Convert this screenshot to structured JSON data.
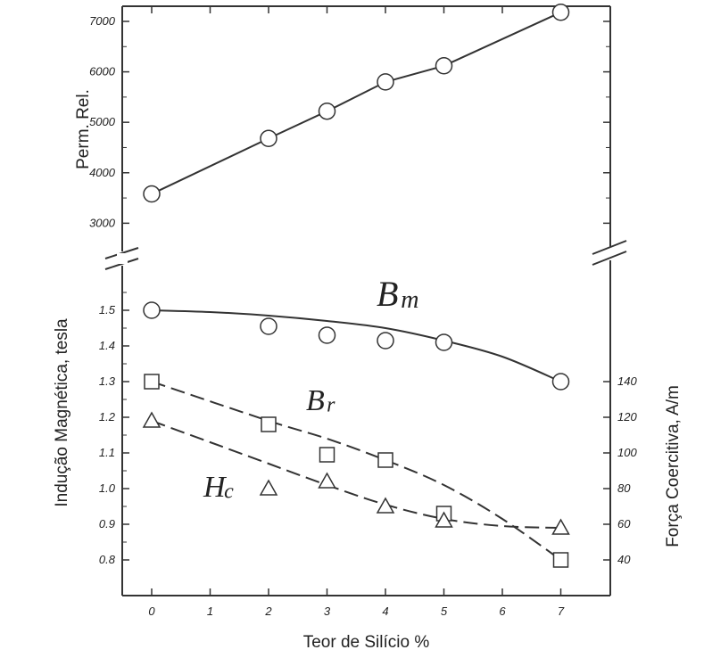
{
  "chart_data": [
    {
      "type": "line",
      "ylabel": "Perm. Rel.",
      "xlim": [
        -0.3,
        7.35
      ],
      "ylim": [
        2600,
        7300
      ],
      "yticks": [
        "3000",
        "4000",
        "5000",
        "6000",
        "7000"
      ],
      "grid": false,
      "series": [
        {
          "marker": "circle",
          "line_style": "solid",
          "points": [
            [
              0,
              3580
            ],
            [
              2,
              4680
            ],
            [
              3,
              5220
            ],
            [
              4,
              5800
            ],
            [
              5,
              6120
            ],
            [
              7,
              7180
            ]
          ]
        }
      ]
    },
    {
      "type": "line",
      "xlabel": "Teor de Silício %",
      "ylabel": "Indução Magnética, tesla",
      "y2label": "Força Coercitiva, A/m",
      "xlim": [
        -0.3,
        7.35
      ],
      "ylim": [
        0.72,
        1.62
      ],
      "y2lim": [
        20,
        200
      ],
      "xticks": [
        "0",
        "1",
        "2",
        "3",
        "4",
        "5",
        "6",
        "7"
      ],
      "yticks": [
        "0.8",
        "0.9",
        "1.0",
        "1.1",
        "1.2",
        "1.3",
        "1.4",
        "1.5"
      ],
      "y2ticks": [
        "40",
        "60",
        "80",
        "100",
        "120",
        "140"
      ],
      "grid": false,
      "series": [
        {
          "name": "B",
          "name_sub": "m",
          "axis": "left",
          "marker": "circle",
          "line_style": "solid",
          "points": [
            [
              0,
              1.5
            ],
            [
              2,
              1.455
            ],
            [
              3,
              1.43
            ],
            [
              4,
              1.415
            ],
            [
              5,
              1.41
            ],
            [
              7,
              1.3
            ]
          ],
          "curve": [
            [
              0,
              1.5
            ],
            [
              1,
              1.495
            ],
            [
              2,
              1.485
            ],
            [
              3,
              1.47
            ],
            [
              4,
              1.45
            ],
            [
              5,
              1.415
            ],
            [
              6,
              1.37
            ],
            [
              7,
              1.3
            ]
          ]
        },
        {
          "name": "B",
          "name_sub": "r",
          "axis": "left",
          "marker": "square",
          "line_style": "dashed",
          "points": [
            [
              0,
              1.3
            ],
            [
              2,
              1.18
            ],
            [
              3,
              1.095
            ],
            [
              4,
              1.08
            ],
            [
              5,
              0.93
            ],
            [
              7,
              0.8
            ]
          ],
          "curve": [
            [
              0,
              1.3
            ],
            [
              2,
              1.19
            ],
            [
              3,
              1.14
            ],
            [
              4,
              1.08
            ],
            [
              5,
              1.01
            ],
            [
              6,
              0.915
            ],
            [
              7,
              0.8
            ]
          ]
        },
        {
          "name": "H",
          "name_sub": "c",
          "axis": "right",
          "marker": "triangle",
          "line_style": "dashed",
          "points": [
            [
              0,
              118
            ],
            [
              2,
              80
            ],
            [
              3,
              84
            ],
            [
              4,
              70
            ],
            [
              5,
              62
            ],
            [
              7,
              58
            ]
          ],
          "curve": [
            [
              0,
              118
            ],
            [
              1,
              106
            ],
            [
              2,
              94
            ],
            [
              3,
              82
            ],
            [
              4,
              71
            ],
            [
              5,
              63
            ],
            [
              6,
              59
            ],
            [
              7,
              58
            ]
          ]
        }
      ]
    }
  ]
}
